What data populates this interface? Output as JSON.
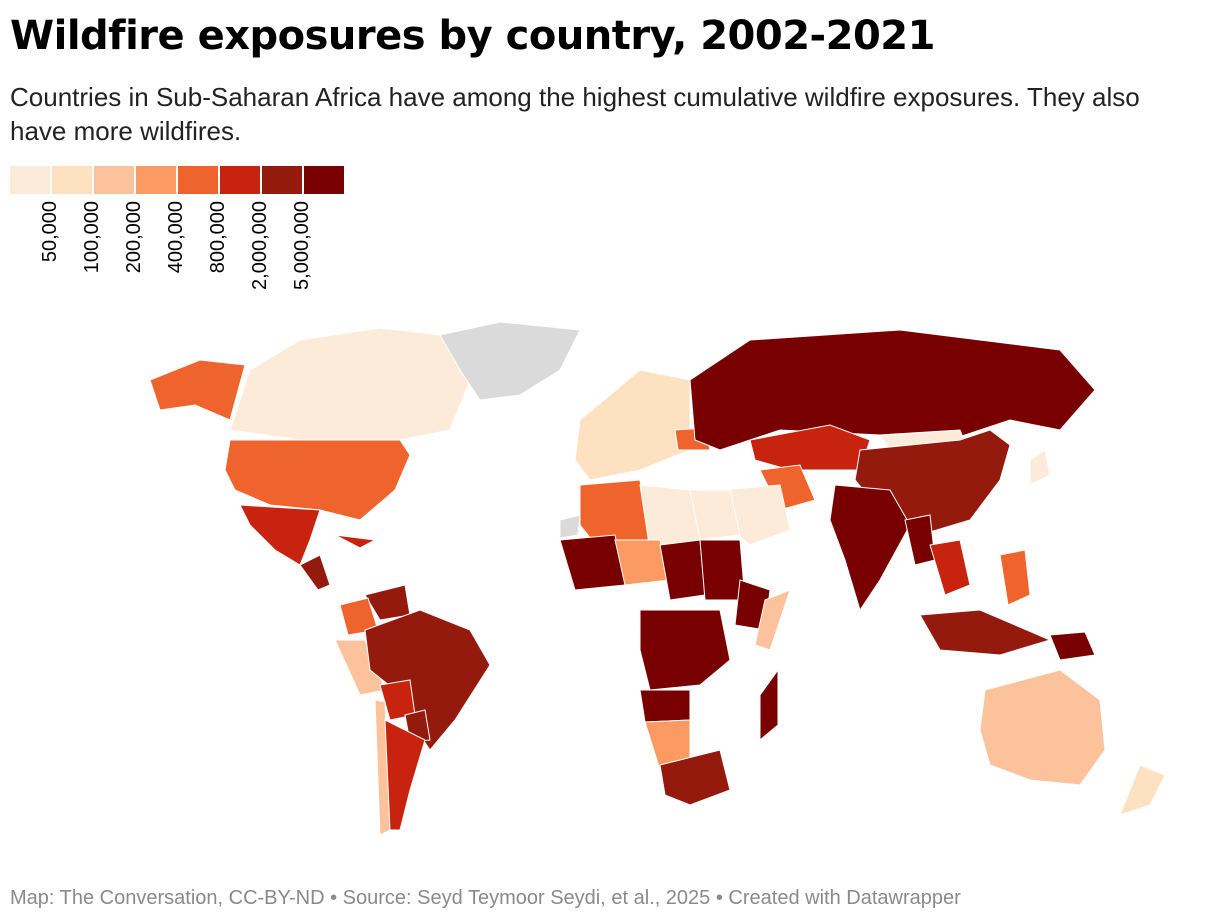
{
  "title": "Wildfire exposures by country, 2002-2021",
  "subtitle": "Countries in Sub-Saharan Africa have among the highest cumulative wildfire exposures. They also have more wildfires.",
  "legend": {
    "colors": [
      "#fdebd9",
      "#fde1c1",
      "#fcc29c",
      "#fb9a62",
      "#ef632c",
      "#c7230f",
      "#951a0e",
      "#790000"
    ],
    "labels": [
      "50,000",
      "100,000",
      "200,000",
      "400,000",
      "800,000",
      "2,000,000",
      "5,000,000"
    ]
  },
  "map": {
    "no_data_color": "#dadada",
    "countries": {
      "russia": 7,
      "usa": 4,
      "canada": 0,
      "alaska": 4,
      "greenland": "nodata",
      "mexico": 5,
      "central_america": 6,
      "cuba": 5,
      "brazil": 6,
      "venezuela": 6,
      "colombia": 4,
      "peru": 2,
      "bolivia": 5,
      "paraguay": 6,
      "argentina": 5,
      "chile": 2,
      "china": 6,
      "mongolia": 0,
      "kazakhstan": 5,
      "india": 7,
      "myanmar": 7,
      "thailand": 5,
      "indonesia": 6,
      "papua_new_guinea": 7,
      "australia": 2,
      "new_zealand": 1,
      "madagascar": 7,
      "south_africa": 6,
      "drc": 7,
      "sudan": 7,
      "chad": 7,
      "mali": 7,
      "algeria": 4,
      "niger": 3,
      "libya": 0,
      "egypt": 0,
      "saudi_arabia": 0,
      "iran": 4,
      "ukraine": 4,
      "japan": 0,
      "philippines": 4,
      "angola": 7,
      "ethiopia": 7,
      "namibia": 3,
      "europe": 1,
      "western_sahara": "nodata",
      "somalia": 2
    }
  },
  "footer": "Map: The Conversation, CC-BY-ND • Source: Seyd Teymoor Seydi, et al., 2025 • Created with Datawrapper"
}
